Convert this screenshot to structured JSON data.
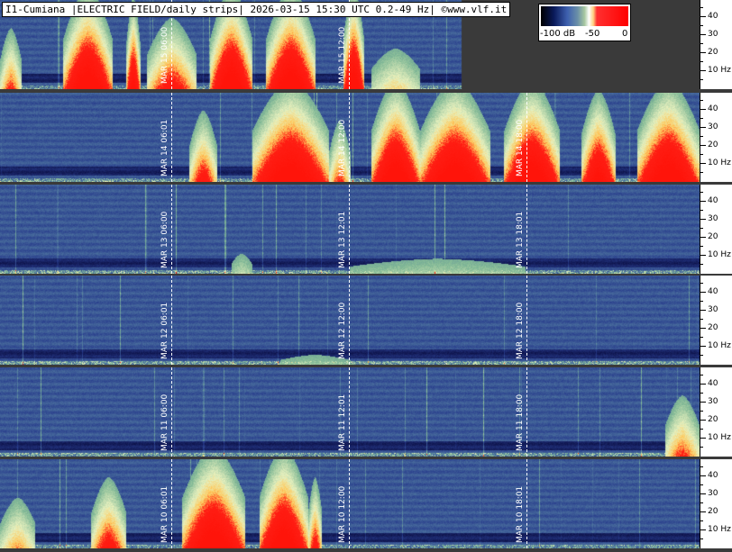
{
  "header": {
    "title": "I1-Cumiana |ELECTRIC FIELD/daily strips| 2026-03-15 15:30 UTC 0.2-49 Hz| ©www.vlf.it"
  },
  "colorbar": {
    "min_label": "-100 dB",
    "mid_label": "-50",
    "max_label": "0"
  },
  "frequency_axis": {
    "labels": [
      "40",
      "30",
      "20",
      "10 Hz"
    ]
  },
  "palette": {
    "background": "#3a3a3a",
    "low": "#2a3c8c",
    "mid": "#7fb0a0",
    "high": "#e8f0c0",
    "saturated": "#ff1a10"
  },
  "strips": [
    {
      "date": "MAR 15",
      "markers": [
        {
          "time": "06:00",
          "label": "MAR 15  06:00"
        },
        {
          "time": "12:00",
          "label": "MAR 15  12:00"
        }
      ],
      "data_until_fraction": 0.66
    },
    {
      "date": "MAR 14",
      "markers": [
        {
          "time": "06:01",
          "label": "MAR 14  06:01"
        },
        {
          "time": "12:00",
          "label": "MAR 14  12:00"
        },
        {
          "time": "18:00",
          "label": "MAR 14  18:00"
        }
      ],
      "data_until_fraction": 1.0
    },
    {
      "date": "MAR 13",
      "markers": [
        {
          "time": "06:00",
          "label": "MAR 13  06:00"
        },
        {
          "time": "12:01",
          "label": "MAR 13  12:01"
        },
        {
          "time": "18:01",
          "label": "MAR 13  18:01"
        }
      ],
      "data_until_fraction": 1.0
    },
    {
      "date": "MAR 12",
      "markers": [
        {
          "time": "06:01",
          "label": "MAR 12  06:01"
        },
        {
          "time": "12:00",
          "label": "MAR 12  12:00"
        },
        {
          "time": "18:00",
          "label": "MAR 12  18:00"
        }
      ],
      "data_until_fraction": 1.0
    },
    {
      "date": "MAR 11",
      "markers": [
        {
          "time": "06:00",
          "label": "MAR 11  06:00"
        },
        {
          "time": "12:01",
          "label": "MAR 11  12:01"
        },
        {
          "time": "18:00",
          "label": "MAR 11  18:00"
        }
      ],
      "data_until_fraction": 1.0
    },
    {
      "date": "MAR 10",
      "markers": [
        {
          "time": "06:01",
          "label": "MAR 10  06:01"
        },
        {
          "time": "12:00",
          "label": "MAR 10  12:00"
        },
        {
          "time": "18:01",
          "label": "MAR 10  18:01"
        }
      ],
      "data_until_fraction": 1.0
    }
  ]
}
